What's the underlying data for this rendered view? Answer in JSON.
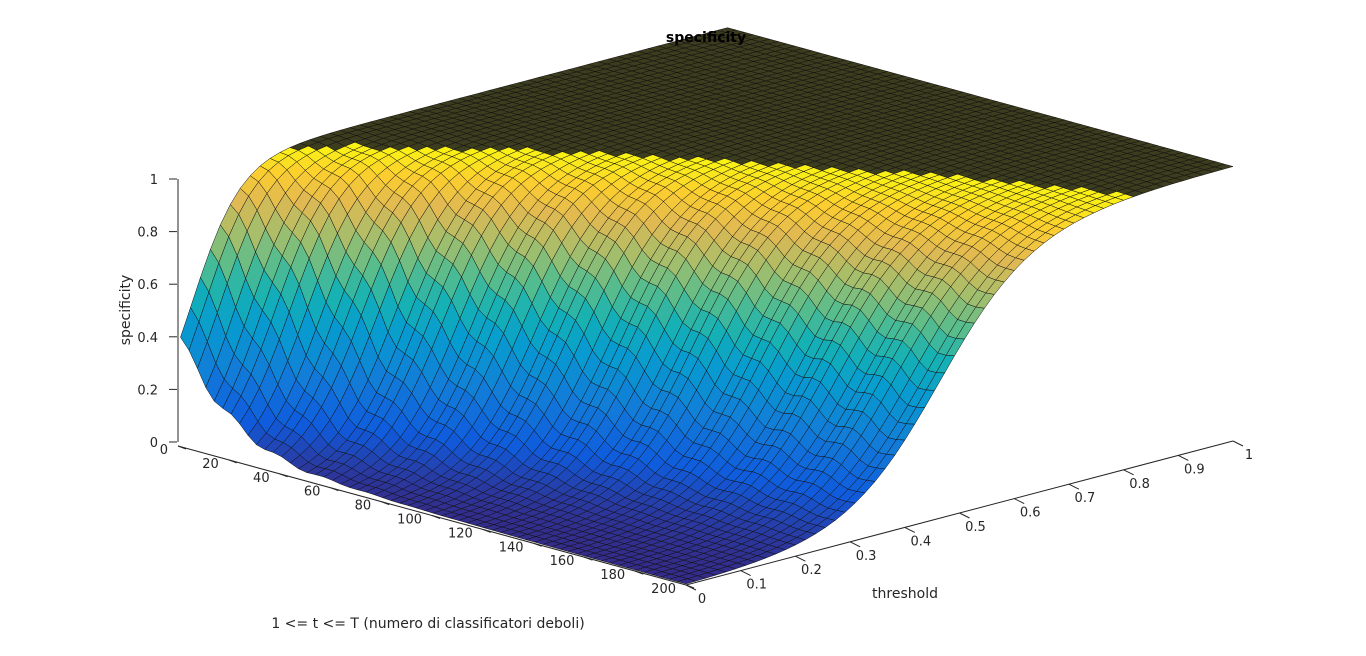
{
  "chart_data": {
    "type": "surface",
    "title": "specificity",
    "xlabel": "1 <= t <= T (numero di classificatori deboli)",
    "ylabel": "threshold",
    "zlabel": "specificity",
    "xlim": [
      0,
      200
    ],
    "ylim": [
      0,
      1
    ],
    "zlim": [
      0,
      1
    ],
    "x_ticks": [
      "0",
      "20",
      "40",
      "60",
      "80",
      "100",
      "120",
      "140",
      "160",
      "180",
      "200"
    ],
    "y_ticks": [
      "0",
      "0.1",
      "0.2",
      "0.3",
      "0.4",
      "0.5",
      "0.6",
      "0.7",
      "0.8",
      "0.9",
      "1"
    ],
    "z_ticks": [
      "0",
      "0.2",
      "0.4",
      "0.6",
      "0.8",
      "1"
    ],
    "colormap": "parula",
    "description_of_surface": {
      "rise_threshold_at_t": [
        {
          "t": 1,
          "threshold_center": 0.02
        },
        {
          "t": 20,
          "threshold_center": 0.08
        },
        {
          "t": 50,
          "threshold_center": 0.18
        },
        {
          "t": 100,
          "threshold_center": 0.3
        },
        {
          "t": 150,
          "threshold_center": 0.4
        },
        {
          "t": 200,
          "threshold_center": 0.47
        }
      ],
      "plateau_value": 1
    }
  }
}
